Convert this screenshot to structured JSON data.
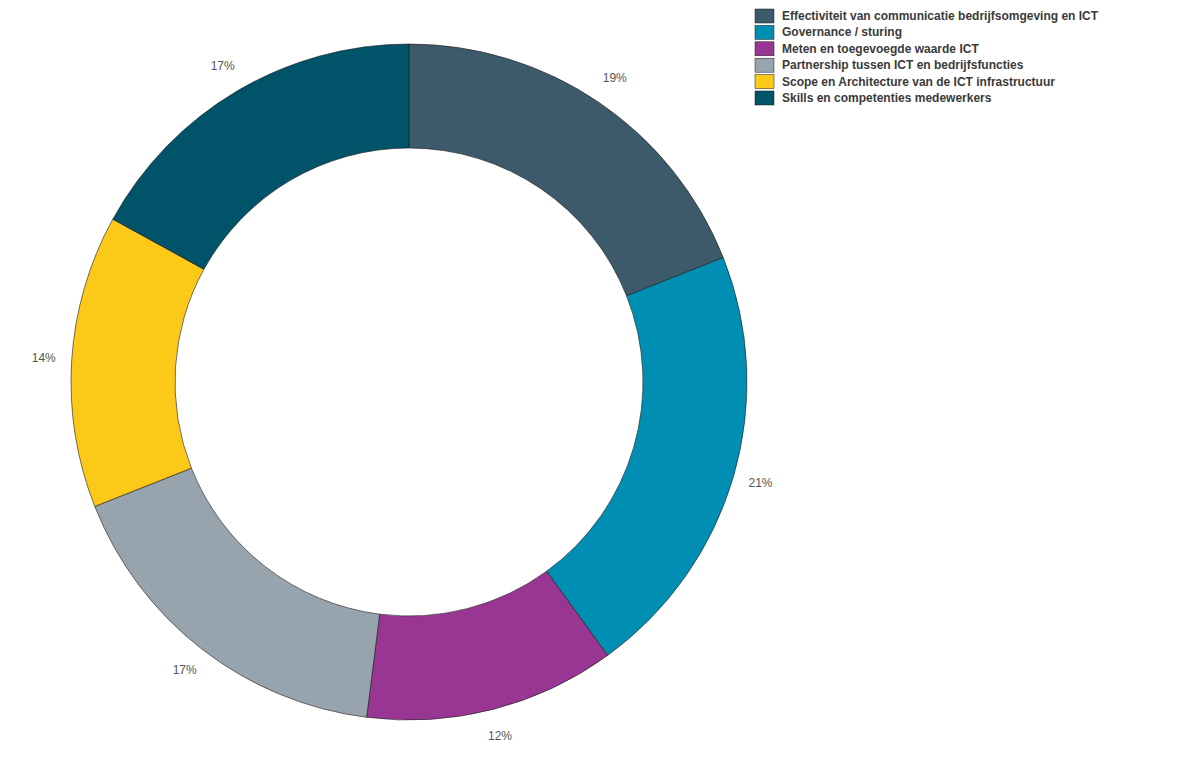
{
  "chart_data": {
    "type": "pie",
    "categories": [
      "Effectiviteit van communicatie bedrijfsomgeving en ICT",
      "Governance / sturing",
      "Meten en toegevoegde waarde ICT",
      "Partnership tussen ICT en bedrijfsfuncties",
      "Scope en Architecture van de ICT infrastructuur",
      "Skills en competenties medewerkers"
    ],
    "values": [
      19,
      21,
      12,
      17,
      14,
      17
    ],
    "value_labels": [
      "19%",
      "21%",
      "12%",
      "17%",
      "14%",
      "17%"
    ],
    "colors": [
      "#3d5a6b",
      "#008fb3",
      "#993694",
      "#97a3ad",
      "#fdc918",
      "#005369"
    ],
    "data_labels": true,
    "legend": "top-right"
  }
}
